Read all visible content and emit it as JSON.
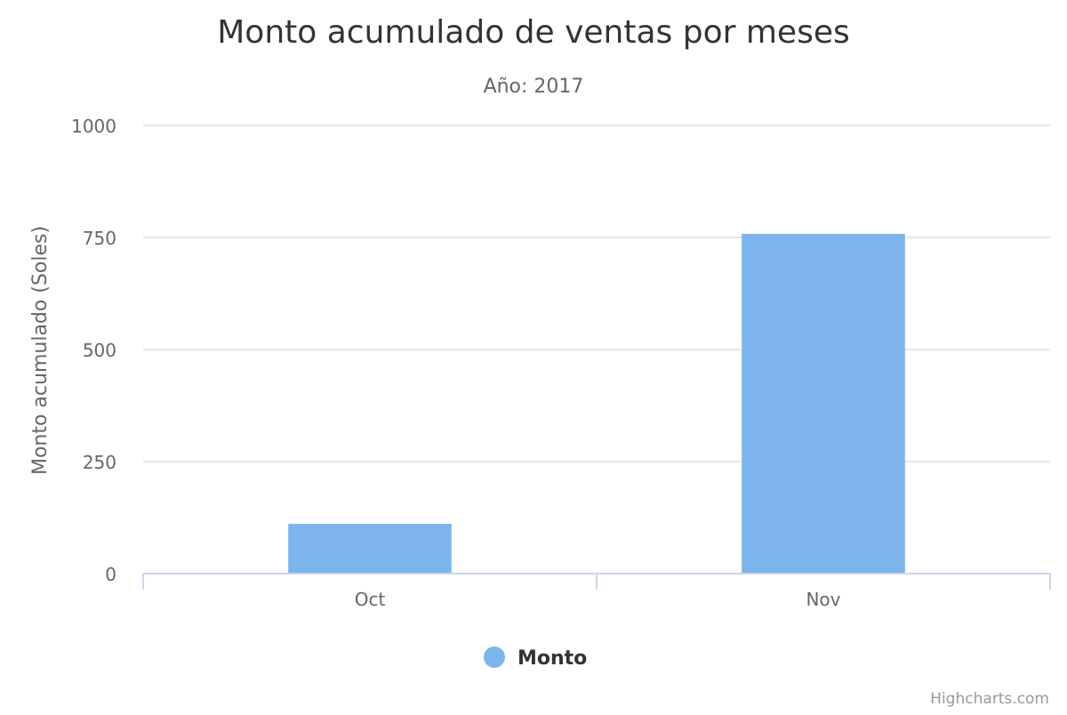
{
  "chart_data": {
    "type": "bar",
    "title": "Monto acumulado de ventas por meses",
    "subtitle": "Año: 2017",
    "ylabel": "Monto acumulado (Soles)",
    "categories": [
      "Oct",
      "Nov"
    ],
    "series": [
      {
        "name": "Monto",
        "values": [
          111,
          758
        ]
      }
    ],
    "ylim": [
      0,
      1000
    ],
    "yticks": [
      0,
      250,
      500,
      750,
      1000
    ],
    "ytick_labels": [
      "0",
      "250",
      "500",
      "750",
      "1000"
    ],
    "grid": true,
    "legend_position": "bottom-center",
    "colors": {
      "bar": "#7cb5ec",
      "grid": "#e6e6e6",
      "axis": "#ccd6eb",
      "title": "#333333",
      "label": "#666666",
      "credit": "#999999"
    }
  },
  "credits": "Highcharts.com"
}
